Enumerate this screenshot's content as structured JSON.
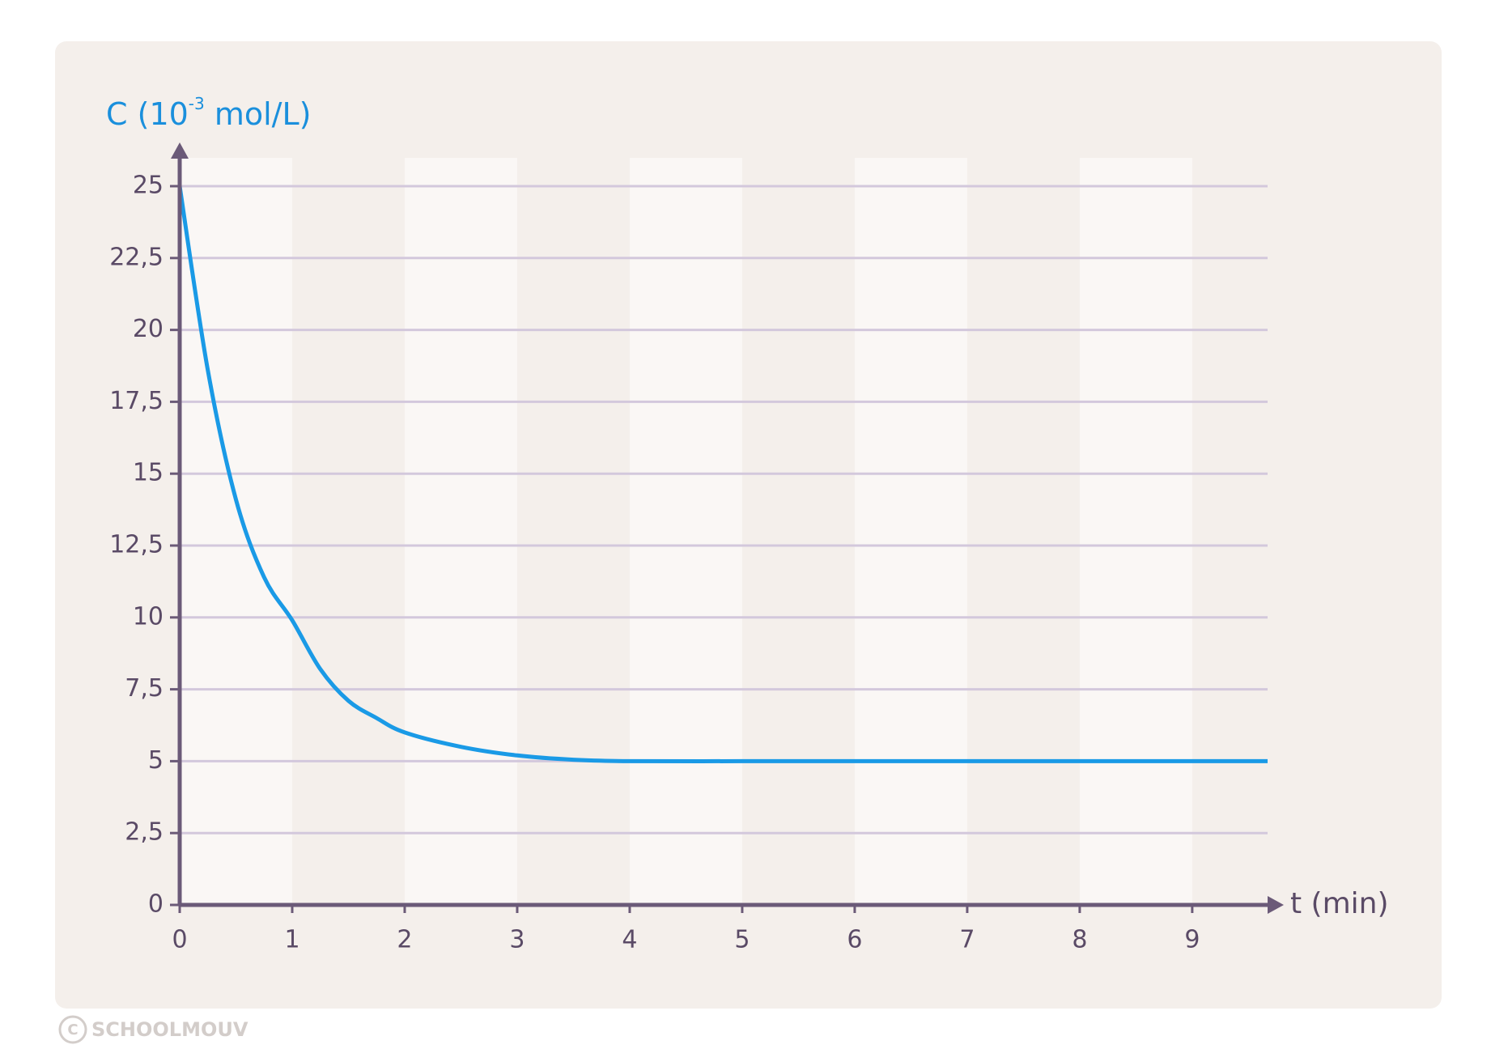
{
  "chart_data": {
    "type": "line",
    "y_label": {
      "prefix": "C (10",
      "sup": "-3",
      "suffix": " mol/L)"
    },
    "x_label": "t (min)",
    "x": [
      0,
      0.25,
      0.5,
      0.75,
      1,
      1.25,
      1.5,
      1.75,
      2,
      2.5,
      3,
      3.5,
      4,
      5,
      6,
      7,
      8,
      9,
      9.67
    ],
    "series": [
      {
        "color": "#1a9ae6",
        "values": [
          25,
          18.6,
          14.1,
          11.4,
          9.9,
          8.2,
          7.1,
          6.5,
          6.0,
          5.5,
          5.2,
          5.05,
          5,
          5,
          5,
          5,
          5,
          5,
          5
        ]
      }
    ],
    "xlim": [
      0,
      9.67
    ],
    "ylim": [
      0,
      25
    ],
    "xticks": [
      0,
      1,
      2,
      3,
      4,
      5,
      6,
      7,
      8,
      9
    ],
    "yticks": [
      0,
      {
        "value": 2.5,
        "label": "2,5"
      },
      5,
      {
        "value": 7.5,
        "label": "7,5"
      },
      10,
      {
        "value": 12.5,
        "label": "12,5"
      },
      15,
      {
        "value": 17.5,
        "label": "17,5"
      },
      20,
      {
        "value": 22.5,
        "label": "22,5"
      },
      25
    ],
    "grid": true
  },
  "watermark": "SCHOOLMOUV"
}
